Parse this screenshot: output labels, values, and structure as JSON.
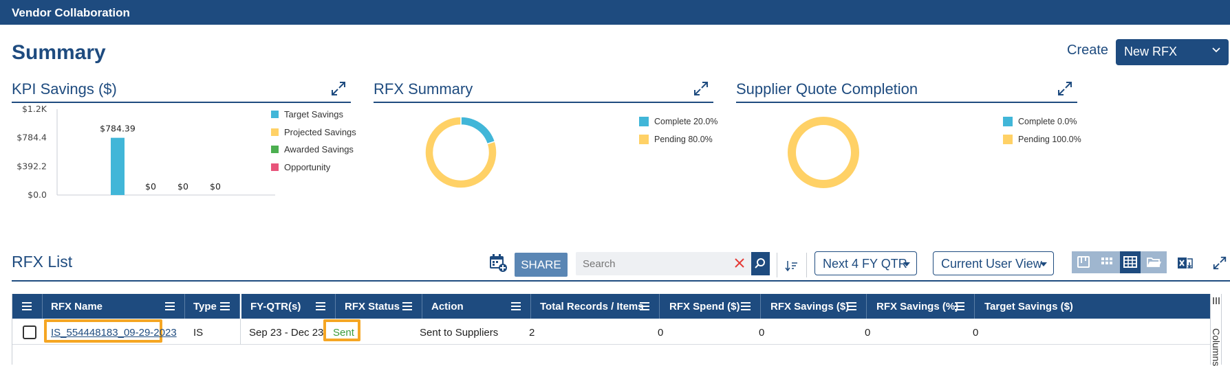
{
  "topbar": {
    "title": "Vendor Collaboration"
  },
  "page": {
    "title": "Summary",
    "create_label": "Create",
    "new_rfx_label": "New RFX"
  },
  "kpi_panel": {
    "title": "KPI Savings ($)"
  },
  "rfx_summary_panel": {
    "title": "RFX Summary"
  },
  "supplier_panel": {
    "title": "Supplier Quote Completion"
  },
  "chart_data": [
    {
      "type": "bar",
      "title": "KPI Savings ($)",
      "categories": [
        "Target Savings",
        "Projected Savings",
        "Awarded Savings",
        "Opportunity"
      ],
      "values": [
        784.39,
        0,
        0,
        0
      ],
      "data_labels": [
        "$784.39",
        "$0",
        "$0",
        "$0"
      ],
      "y_ticks": [
        "$0.0",
        "$392.2",
        "$784.4",
        "$1.2K"
      ],
      "y_tick_values": [
        0,
        392.2,
        784.4,
        1176.6
      ],
      "ylim": [
        0,
        1176.6
      ],
      "legend": [
        "Target Savings",
        "Projected Savings",
        "Awarded Savings",
        "Opportunity"
      ],
      "legend_position": "right",
      "colors": [
        "#41b6d8",
        "#ffd166",
        "#4caf50",
        "#e8547a"
      ],
      "grid": false
    },
    {
      "type": "pie",
      "title": "RFX Summary",
      "labels": [
        "Complete",
        "Pending"
      ],
      "values": [
        20.0,
        80.0
      ],
      "legend": [
        "Complete 20.0%",
        "Pending 80.0%"
      ],
      "legend_position": "right",
      "colors": [
        "#41b6d8",
        "#ffd166"
      ]
    },
    {
      "type": "pie",
      "title": "Supplier Quote Completion",
      "labels": [
        "Complete",
        "Pending"
      ],
      "values": [
        0.0,
        100.0
      ],
      "legend": [
        "Complete 0.0%",
        "Pending 100.0%"
      ],
      "legend_position": "right",
      "colors": [
        "#41b6d8",
        "#ffd166"
      ]
    }
  ],
  "rfx_list": {
    "title": "RFX List",
    "share_label": "SHARE",
    "search_placeholder": "Search",
    "period_filter": "Next 4 FY QTR",
    "view_filter": "Current User View",
    "side_panel_label": "Columns",
    "columns": [
      "RFX Name",
      "Type",
      "FY-QTR(s)",
      "RFX Status",
      "Action",
      "Total Records / Items",
      "RFX Spend ($)",
      "RFX Savings ($)",
      "RFX Savings (%)",
      "Target Savings ($)"
    ],
    "rows": [
      {
        "rfx_name": "IS_554448183_09-29-2023",
        "type": "IS",
        "fy_qtr": "Sep 23 - Dec 23",
        "status": "Sent",
        "action": "Sent to Suppliers",
        "total_records": "2",
        "spend": "0",
        "savings": "0",
        "savings_pct": "0",
        "target_savings": "0"
      }
    ]
  },
  "colors": {
    "brand": "#1e4b7f",
    "highlight": "#f5a623",
    "status_sent": "#3a9a3a"
  }
}
